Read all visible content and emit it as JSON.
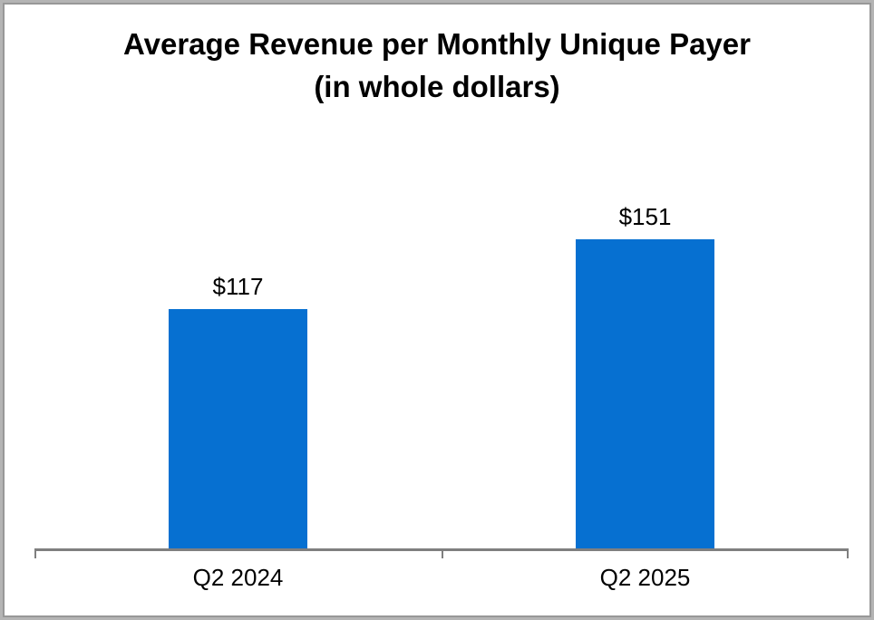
{
  "chart_data": {
    "type": "bar",
    "title": "Average Revenue per Monthly Unique Payer (in whole dollars)",
    "title_lines": [
      "Average Revenue per Monthly Unique Payer",
      "(in whole dollars)"
    ],
    "categories": [
      "Q2 2024",
      "Q2 2025"
    ],
    "values": [
      117,
      151
    ],
    "data_labels": [
      "$117",
      "$151"
    ],
    "xlabel": "",
    "ylabel": "",
    "ylim": [
      0,
      160
    ],
    "grid": false,
    "y_axis_visible": false,
    "legend_position": "none",
    "colors": {
      "bar": "#0670D1",
      "axis": "#7f7f7f",
      "text": "#000000",
      "frame_border_outer": "#b4b4b4",
      "frame_border_inner": "#989898",
      "background": "#ffffff"
    }
  }
}
